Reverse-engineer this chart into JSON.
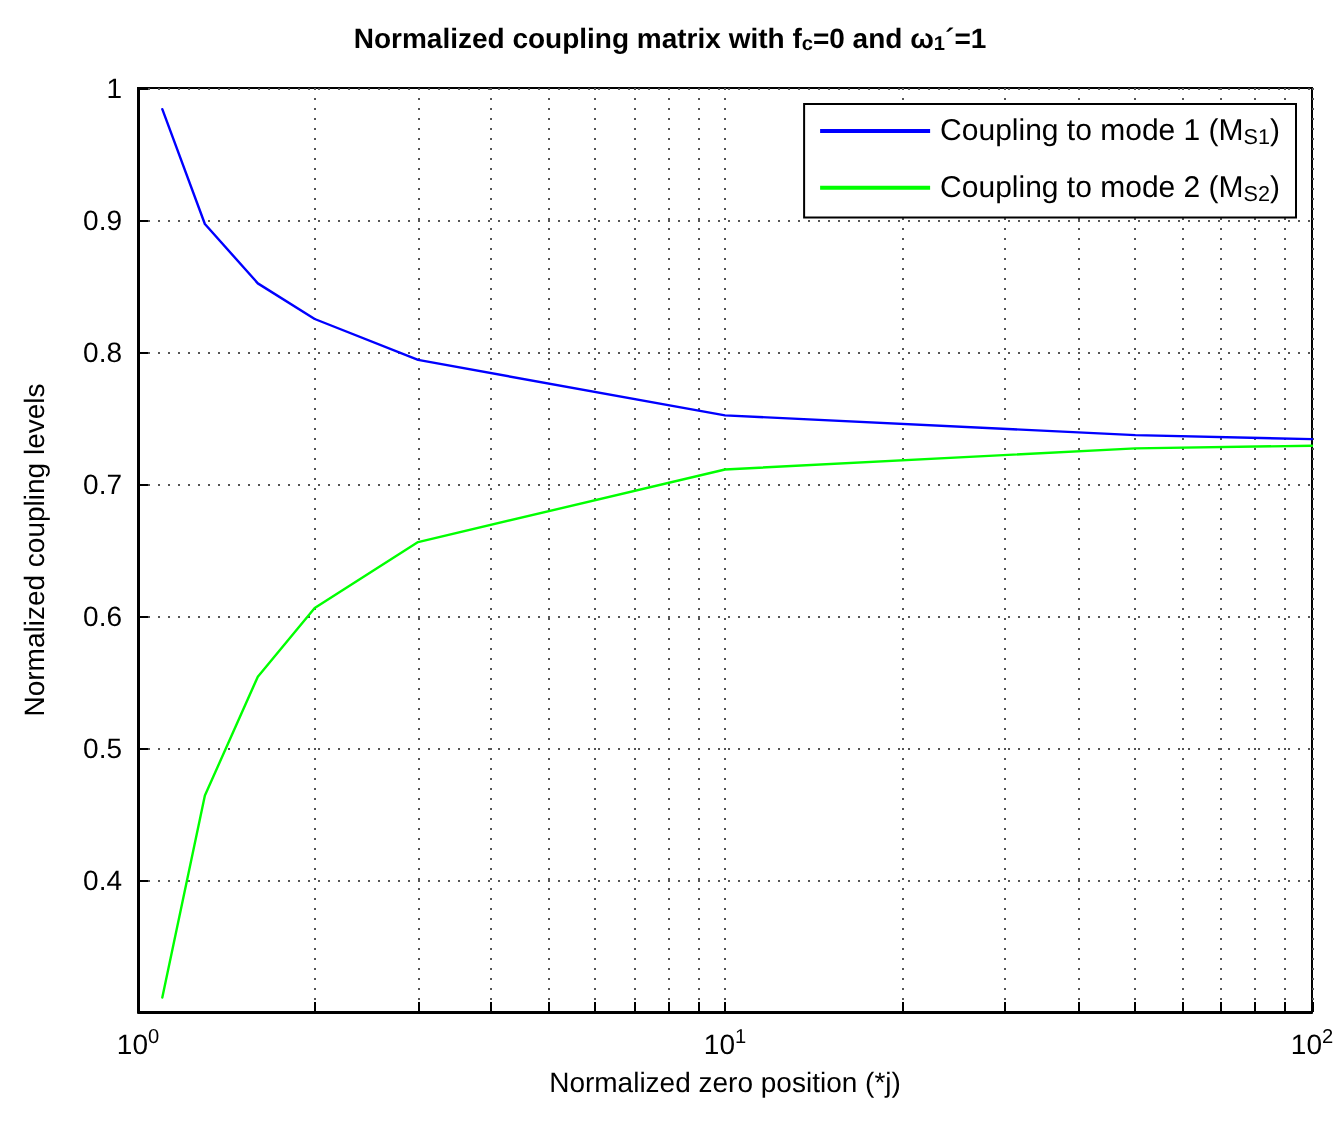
{
  "chart_data": {
    "type": "line",
    "title": "Normalized coupling matrix with f$_{c}$=0 and ω$_{1}$´=1",
    "xlabel": "Normalized zero position (*j)",
    "ylabel": "Normalized coupling levels",
    "x": [
      1.1,
      1.3,
      1.6,
      2,
      3,
      10,
      50,
      100
    ],
    "series": [
      {
        "name": "Coupling to mode 1 (M$_{S1}$)",
        "color": "#0000ff",
        "values": [
          0.984,
          0.897,
          0.852,
          0.825,
          0.794,
          0.752,
          0.737,
          0.734
        ]
      },
      {
        "name": "Coupling to mode 2 (M$_{S2}$)",
        "color": "#00ff00",
        "values": [
          0.311,
          0.464,
          0.554,
          0.606,
          0.656,
          0.711,
          0.727,
          0.729
        ]
      }
    ],
    "log": "x",
    "xlim": [
      1,
      100
    ],
    "xticks": [
      {
        "value": 1,
        "label": "10$^{0}$"
      },
      {
        "value": 2,
        "label": null
      },
      {
        "value": 3,
        "label": null
      },
      {
        "value": 4,
        "label": null
      },
      {
        "value": 5,
        "label": null
      },
      {
        "value": 6,
        "label": null
      },
      {
        "value": 7,
        "label": null
      },
      {
        "value": 8,
        "label": null
      },
      {
        "value": 9,
        "label": null
      },
      {
        "value": 10,
        "label": "10$^{1}$"
      },
      {
        "value": 20,
        "label": null
      },
      {
        "value": 30,
        "label": null
      },
      {
        "value": 40,
        "label": null
      },
      {
        "value": 50,
        "label": null
      },
      {
        "value": 60,
        "label": null
      },
      {
        "value": 70,
        "label": null
      },
      {
        "value": 80,
        "label": null
      },
      {
        "value": 90,
        "label": null
      },
      {
        "value": 100,
        "label": "10$^{2}$"
      }
    ],
    "ylim": [
      0.3,
      1
    ],
    "yticks": [
      0.4,
      0.5,
      0.6,
      0.7,
      0.8,
      0.9,
      1
    ],
    "grid": true,
    "legend": "top right",
    "marker": "none",
    "line_style": "solid"
  }
}
